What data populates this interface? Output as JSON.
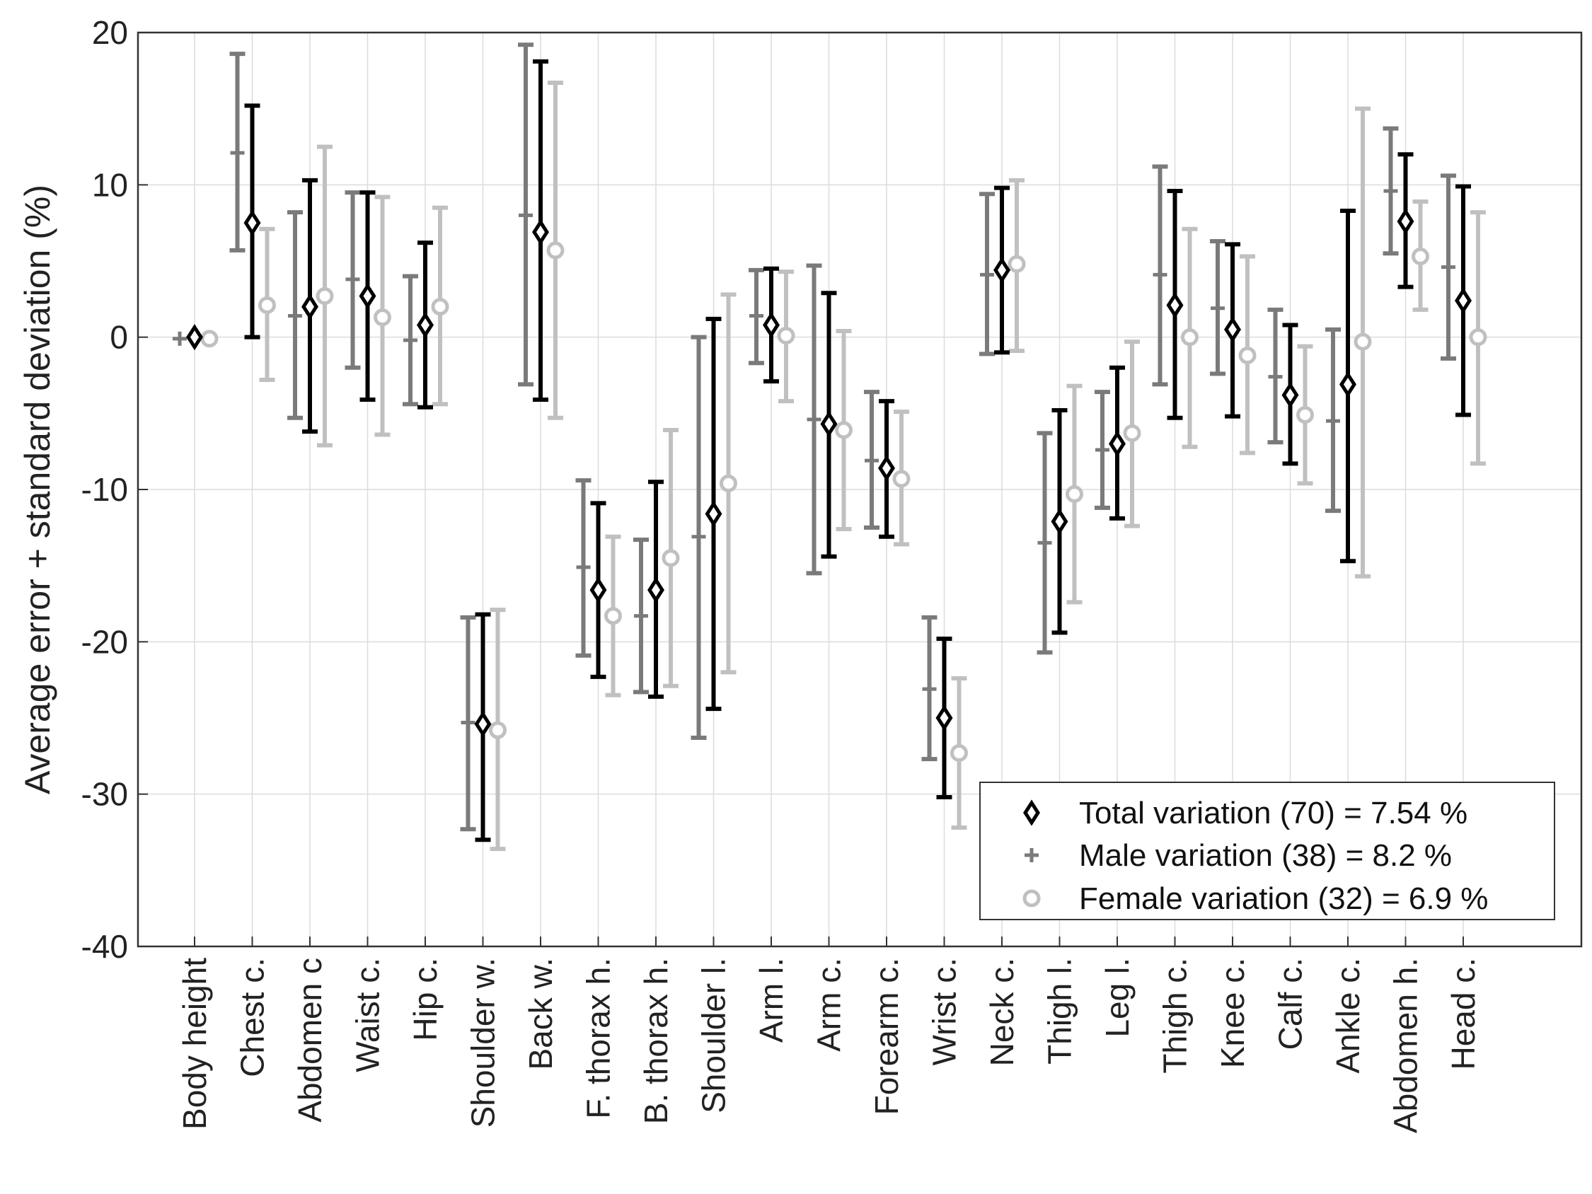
{
  "chart_data": {
    "type": "errorbar",
    "ylabel": "Average error + standard deviation (%)",
    "xlabel": "",
    "ylim": [
      -40,
      20
    ],
    "yticks": [
      20,
      10,
      0,
      -10,
      -20,
      -30,
      -40
    ],
    "grid": true,
    "legend_position": "bottom-right",
    "categories": [
      "Body height",
      "Chest c.",
      "Abdomen c",
      "Waist c.",
      "Hip c.",
      "Shoulder w.",
      "Back w.",
      "F. thorax h.",
      "B. thorax h.",
      "Shoulder l.",
      "Arm l.",
      "Arm c.",
      "Forearm c.",
      "Wrist c.",
      "Neck c.",
      "Thigh l.",
      "Leg l.",
      "Thigh c.",
      "Knee c.",
      "Calf c.",
      "Ankle c.",
      "Abdomen h.",
      "Head c."
    ],
    "series": [
      {
        "name": "Total variation (70) = 7.54 %",
        "marker": "diamond",
        "color": "#000000",
        "means": [
          0,
          7.5,
          2.0,
          2.7,
          0.8,
          -25.4,
          6.9,
          -16.6,
          -16.6,
          -11.6,
          0.8,
          -5.7,
          -8.6,
          -25.0,
          4.4,
          -12.1,
          -7.0,
          2.1,
          0.5,
          -3.8,
          -3.1,
          7.6,
          2.4
        ],
        "lower": [
          0,
          0,
          -6.2,
          -4.1,
          -4.6,
          -33.0,
          -4.1,
          -22.3,
          -23.6,
          -24.4,
          -2.9,
          -14.4,
          -13.1,
          -30.2,
          -1.0,
          -19.4,
          -11.9,
          -5.3,
          -5.2,
          -8.3,
          -14.7,
          3.3,
          -5.1
        ],
        "upper": [
          0,
          15.2,
          10.3,
          9.5,
          6.2,
          -18.2,
          18.1,
          -10.9,
          -9.5,
          1.2,
          4.5,
          2.9,
          -4.2,
          -19.8,
          9.8,
          -4.8,
          -2.0,
          9.6,
          6.1,
          0.8,
          8.3,
          12.0,
          9.9
        ]
      },
      {
        "name": "Male variation (38) = 8.2 %",
        "marker": "plus",
        "color": "#7a7a7a",
        "means": [
          -0.1,
          12.1,
          1.4,
          3.8,
          -0.2,
          -25.3,
          8.0,
          -15.1,
          -18.3,
          -13.1,
          1.4,
          -5.4,
          -8.1,
          -23.1,
          4.1,
          -13.5,
          -7.4,
          4.1,
          1.9,
          -2.6,
          -5.5,
          9.6,
          4.6
        ],
        "lower": [
          -0.1,
          5.7,
          -5.3,
          -2.0,
          -4.4,
          -32.3,
          -3.1,
          -20.9,
          -23.3,
          -26.3,
          -1.7,
          -15.5,
          -12.5,
          -27.7,
          -1.1,
          -20.7,
          -11.2,
          -3.1,
          -2.4,
          -6.9,
          -11.4,
          5.5,
          -1.4
        ],
        "upper": [
          -0.1,
          18.6,
          8.2,
          9.5,
          4.0,
          -18.4,
          19.2,
          -9.4,
          -13.3,
          0.0,
          4.4,
          4.7,
          -3.6,
          -18.4,
          9.4,
          -6.3,
          -3.6,
          11.2,
          6.3,
          1.8,
          0.5,
          13.7,
          10.6
        ]
      },
      {
        "name": "Female variation (32) = 6.9 %",
        "marker": "circle",
        "color": "#c0c0c0",
        "means": [
          -0.1,
          2.1,
          2.7,
          1.3,
          2.0,
          -25.8,
          5.7,
          -18.3,
          -14.5,
          -9.6,
          0.1,
          -6.1,
          -9.3,
          -27.3,
          4.8,
          -10.3,
          -6.3,
          0.0,
          -1.2,
          -5.1,
          -0.3,
          5.3,
          0.0
        ],
        "lower": [
          -0.1,
          -2.8,
          -7.1,
          -6.4,
          -4.4,
          -33.6,
          -5.3,
          -23.5,
          -22.9,
          -22.0,
          -4.2,
          -12.6,
          -13.6,
          -32.2,
          -0.9,
          -17.4,
          -12.4,
          -7.2,
          -7.6,
          -9.6,
          -15.7,
          1.8,
          -8.3
        ],
        "upper": [
          -0.1,
          7.1,
          12.5,
          9.2,
          8.5,
          -17.9,
          16.7,
          -13.1,
          -6.1,
          2.8,
          4.3,
          0.4,
          -4.9,
          -22.4,
          10.3,
          -3.2,
          -0.3,
          7.1,
          5.3,
          -0.6,
          15.0,
          8.9,
          8.2
        ]
      }
    ]
  }
}
